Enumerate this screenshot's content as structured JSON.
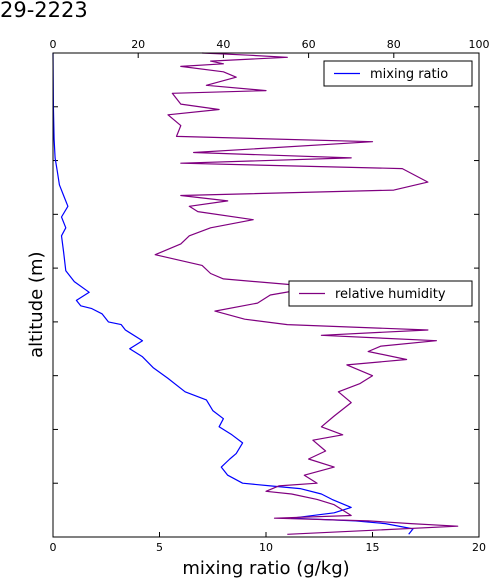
{
  "title": "29-2223",
  "chart_data": {
    "type": "line",
    "title": "29-2223",
    "xlabel": "mixing ratio (g/kg)",
    "ylabel": "altitude (m)",
    "xlim": [
      0,
      20
    ],
    "top_xlim": [
      0,
      100
    ],
    "x_ticks": [
      "0",
      "5",
      "10",
      "15",
      "20"
    ],
    "top_x_ticks": [
      "0",
      "20",
      "40",
      "60",
      "80",
      "100"
    ],
    "ylim": [
      0,
      9
    ],
    "y_tick_labels_shown": false,
    "grid": false,
    "series": [
      {
        "name": "mixing ratio",
        "axis": "bottom",
        "color": "#0000ff",
        "legend_position": "top-right",
        "points": [
          [
            16.7,
            0.05
          ],
          [
            16.9,
            0.15
          ],
          [
            15.6,
            0.25
          ],
          [
            14.2,
            0.3
          ],
          [
            11.2,
            0.35
          ],
          [
            13.2,
            0.45
          ],
          [
            14.0,
            0.55
          ],
          [
            13.1,
            0.7
          ],
          [
            12.6,
            0.8
          ],
          [
            11.6,
            0.9
          ],
          [
            10.2,
            0.95
          ],
          [
            8.9,
            1.0
          ],
          [
            8.2,
            1.15
          ],
          [
            7.9,
            1.3
          ],
          [
            8.3,
            1.45
          ],
          [
            8.6,
            1.55
          ],
          [
            8.9,
            1.75
          ],
          [
            8.4,
            1.9
          ],
          [
            7.8,
            2.05
          ],
          [
            8.0,
            2.2
          ],
          [
            7.5,
            2.35
          ],
          [
            7.2,
            2.55
          ],
          [
            6.2,
            2.7
          ],
          [
            5.4,
            2.95
          ],
          [
            4.7,
            3.15
          ],
          [
            4.2,
            3.35
          ],
          [
            3.6,
            3.5
          ],
          [
            4.2,
            3.65
          ],
          [
            3.4,
            3.85
          ],
          [
            3.2,
            3.95
          ],
          [
            2.6,
            4.0
          ],
          [
            2.3,
            4.15
          ],
          [
            1.8,
            4.25
          ],
          [
            1.3,
            4.3
          ],
          [
            1.1,
            4.4
          ],
          [
            1.7,
            4.55
          ],
          [
            1.0,
            4.75
          ],
          [
            0.6,
            4.95
          ],
          [
            0.5,
            5.3
          ],
          [
            0.4,
            5.6
          ],
          [
            0.6,
            5.75
          ],
          [
            0.4,
            5.95
          ],
          [
            0.7,
            6.15
          ],
          [
            0.5,
            6.35
          ],
          [
            0.3,
            6.55
          ],
          [
            0.2,
            6.8
          ],
          [
            0.1,
            7.05
          ],
          [
            0.05,
            7.4
          ],
          [
            0.02,
            8.0
          ],
          [
            0.0,
            9.0
          ]
        ]
      },
      {
        "name": "relative humidity",
        "axis": "top",
        "color": "#800080",
        "legend_position": "center-right",
        "points": [
          [
            55,
            0.05
          ],
          [
            95,
            0.2
          ],
          [
            84,
            0.25
          ],
          [
            74,
            0.3
          ],
          [
            52,
            0.35
          ],
          [
            70,
            0.4
          ],
          [
            68,
            0.5
          ],
          [
            66,
            0.6
          ],
          [
            62,
            0.7
          ],
          [
            56,
            0.8
          ],
          [
            50,
            0.85
          ],
          [
            53,
            0.95
          ],
          [
            62,
            1.0
          ],
          [
            59,
            1.15
          ],
          [
            66,
            1.3
          ],
          [
            60,
            1.45
          ],
          [
            64,
            1.6
          ],
          [
            61,
            1.8
          ],
          [
            68,
            1.9
          ],
          [
            63,
            2.05
          ],
          [
            66,
            2.25
          ],
          [
            70,
            2.5
          ],
          [
            67,
            2.7
          ],
          [
            72,
            2.85
          ],
          [
            75,
            3.0
          ],
          [
            69,
            3.2
          ],
          [
            83,
            3.3
          ],
          [
            74,
            3.45
          ],
          [
            77,
            3.55
          ],
          [
            90,
            3.65
          ],
          [
            63,
            3.75
          ],
          [
            88,
            3.85
          ],
          [
            55,
            3.95
          ],
          [
            45,
            4.05
          ],
          [
            38,
            4.2
          ],
          [
            48,
            4.35
          ],
          [
            51,
            4.5
          ],
          [
            62,
            4.65
          ],
          [
            40,
            4.8
          ],
          [
            37,
            4.9
          ],
          [
            35,
            5.05
          ],
          [
            24,
            5.25
          ],
          [
            30,
            5.45
          ],
          [
            32,
            5.6
          ],
          [
            37,
            5.75
          ],
          [
            47,
            5.9
          ],
          [
            34,
            6.05
          ],
          [
            32,
            6.15
          ],
          [
            41,
            6.25
          ],
          [
            30,
            6.35
          ],
          [
            80,
            6.45
          ],
          [
            88,
            6.6
          ],
          [
            82,
            6.85
          ],
          [
            30,
            6.95
          ],
          [
            70,
            7.05
          ],
          [
            33,
            7.15
          ],
          [
            75,
            7.35
          ],
          [
            29,
            7.45
          ],
          [
            30,
            7.65
          ],
          [
            27,
            7.85
          ],
          [
            39,
            7.95
          ],
          [
            30,
            8.05
          ],
          [
            28,
            8.25
          ],
          [
            50,
            8.3
          ],
          [
            36,
            8.4
          ],
          [
            43,
            8.55
          ],
          [
            40,
            8.65
          ],
          [
            30,
            8.75
          ],
          [
            40,
            8.8
          ],
          [
            37,
            8.85
          ],
          [
            55,
            8.92
          ],
          [
            46,
            8.96
          ],
          [
            35,
            9.0
          ]
        ]
      }
    ]
  }
}
